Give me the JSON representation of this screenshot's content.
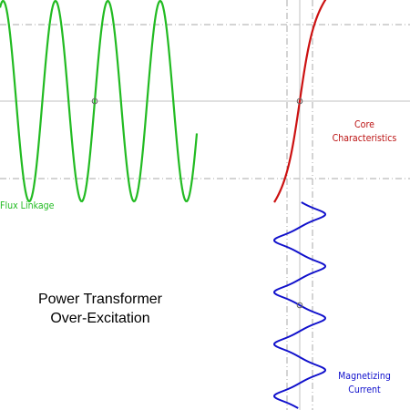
{
  "title": {
    "line1": "Power Transformer",
    "line2": "Over-Excitation"
  },
  "labels": {
    "flux_linkage": "Flux Linkage",
    "core_line1": "Core",
    "core_line2": "Characteristics",
    "mag_line1": "Magnetizing",
    "mag_line2": "Current"
  },
  "colors": {
    "flux": "#22bb22",
    "core": "#cc1111",
    "current": "#1111cc",
    "grid": "#b0b0b0"
  }
}
